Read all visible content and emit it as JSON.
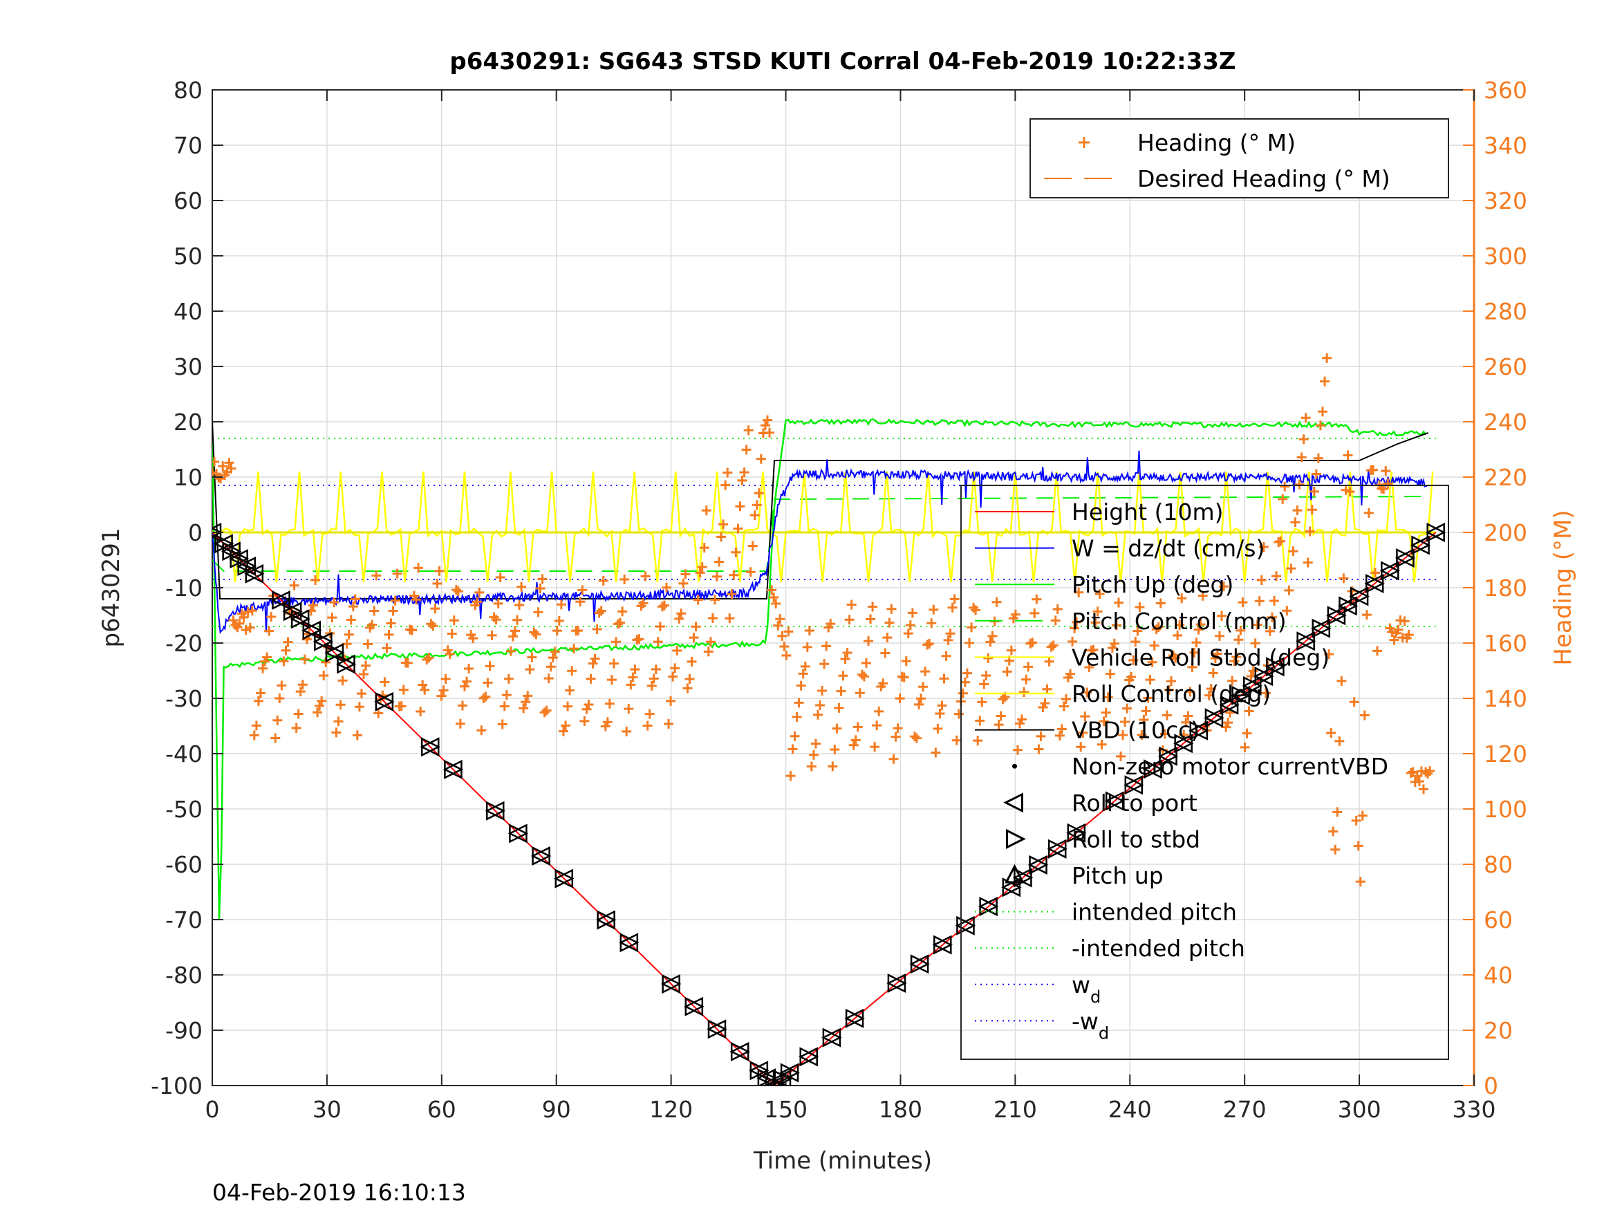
{
  "chart_data": {
    "type": "line",
    "title": "p6430291: SG643 STSD KUTI Corral 04-Feb-2019 10:22:33Z",
    "xlabel": "Time (minutes)",
    "ylabel": "p6430291",
    "ylabel_right": "Heading (°M)",
    "footer": "04-Feb-2019 16:10:13",
    "xlim": [
      0,
      330
    ],
    "ylim": [
      -100,
      80
    ],
    "ylim_right": [
      0,
      360
    ],
    "xticks": [
      "0",
      "30",
      "60",
      "90",
      "120",
      "150",
      "180",
      "210",
      "240",
      "270",
      "300",
      "330"
    ],
    "yticks": [
      "80",
      "70",
      "60",
      "50",
      "40",
      "30",
      "20",
      "10",
      "0",
      "-10",
      "-20",
      "-30",
      "-40",
      "-50",
      "-60",
      "-70",
      "-80",
      "-90",
      "-100"
    ],
    "yticks_right": [
      "360",
      "340",
      "320",
      "300",
      "280",
      "260",
      "240",
      "220",
      "200",
      "180",
      "160",
      "140",
      "120",
      "100",
      "80",
      "60",
      "40",
      "20",
      "0"
    ],
    "grid": true,
    "colors": {
      "height": "#FF0000",
      "w": "#0000FF",
      "pitch": "#00EE00",
      "roll": "#FFFF00",
      "vbd": "#000000",
      "heading": "#F47B20"
    },
    "legend_top": {
      "placement": "top-right",
      "entries": [
        "Heading (° M)",
        "Desired Heading (° M)"
      ]
    },
    "legend_main": {
      "placement": "bottom-right",
      "entries": [
        "Height (10m)",
        "W = dz/dt (cm/s)",
        "Pitch Up (deg)",
        "Pitch Control (mm)",
        "Vehicle Roll Stbd (deg)",
        "Roll Control (deg)",
        "VBD (10cc)",
        "Non-zero motor currentVBD",
        "Roll to port",
        "Roll to stbd",
        "Pitch up",
        "intended pitch",
        "-intended pitch",
        "w",
        "-w"
      ],
      "subscripts": {
        "13": "d",
        "14": "d"
      }
    },
    "series": [
      {
        "name": "Height (10m)",
        "x": [
          0,
          147,
          320
        ],
        "y": [
          0,
          -100,
          0
        ]
      },
      {
        "name": "W = dz/dt (cm/s)",
        "x": [
          0,
          2,
          6,
          20,
          60,
          100,
          140,
          145,
          148,
          152,
          180,
          220,
          260,
          300,
          318
        ],
        "y": [
          0,
          -18,
          -14,
          -12.5,
          -12,
          -11.5,
          -11,
          -7,
          5,
          10.5,
          10.5,
          10,
          10,
          9.5,
          9
        ]
      },
      {
        "name": "Pitch Up (deg)",
        "x": [
          0,
          2,
          3,
          6,
          20,
          60,
          100,
          145,
          147,
          150,
          180,
          220,
          260,
          295,
          300,
          318
        ],
        "y": [
          20,
          -80,
          -24,
          -24,
          -23,
          -22,
          -21,
          -20,
          5,
          20,
          20,
          19.5,
          19.5,
          19.5,
          18,
          18
        ]
      },
      {
        "name": "Pitch Control (mm)",
        "x": [
          0,
          3,
          145,
          147,
          318
        ],
        "y": [
          -5,
          -7,
          -7,
          6,
          6.5
        ]
      },
      {
        "name": "Vehicle Roll Stbd (deg)",
        "x": [
          0,
          320
        ],
        "y": [
          0,
          0
        ]
      },
      {
        "name": "VBD (10cc)",
        "x": [
          0,
          2,
          145,
          147,
          300,
          310,
          318
        ],
        "y": [
          20,
          -12,
          -12,
          13,
          13,
          16,
          18
        ]
      },
      {
        "name": "Heading (° M)",
        "x": [
          0,
          10,
          30,
          60,
          90,
          120,
          145,
          150,
          180,
          210,
          240,
          270,
          300,
          318
        ],
        "y": [
          240,
          140,
          145,
          150,
          145,
          145,
          215,
          130,
          140,
          140,
          140,
          140,
          260,
          80
        ]
      },
      {
        "name": "intended pitch",
        "x": [
          0,
          320
        ],
        "y": [
          17,
          17
        ]
      },
      {
        "name": "-intended pitch",
        "x": [
          0,
          320
        ],
        "y": [
          -17,
          -17
        ]
      },
      {
        "name": "w",
        "x": [
          0,
          320
        ],
        "y": [
          8.5,
          8.5
        ]
      },
      {
        "name": "-w",
        "x": [
          0,
          320
        ],
        "y": [
          -8.5,
          -8.5
        ]
      }
    ],
    "roll_marker_times": [
      0,
      3,
      5,
      7,
      9,
      11,
      18,
      21,
      23,
      26,
      29,
      32,
      35,
      45,
      57,
      63,
      74,
      80,
      86,
      92,
      103,
      109,
      120,
      126,
      132,
      138,
      143,
      145,
      147,
      149,
      151,
      156,
      162,
      168,
      179,
      185,
      191,
      197,
      203,
      209,
      212,
      216,
      221,
      226,
      236,
      241,
      246,
      250,
      254,
      258,
      262,
      266,
      269,
      272,
      275,
      278,
      286,
      290,
      294,
      297,
      300,
      304,
      308,
      312,
      316,
      320
    ]
  }
}
